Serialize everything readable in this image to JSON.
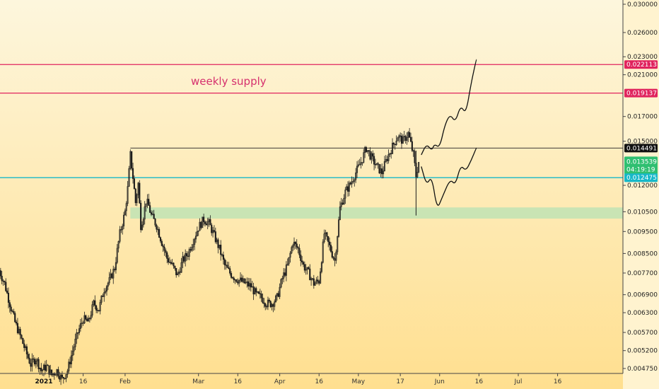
{
  "chart_data": {
    "type": "candlestick",
    "title": "",
    "ylim": [
      0.0047,
      0.0315
    ],
    "y_ticks": [
      0.03,
      0.026,
      0.023,
      0.021,
      0.017,
      0.015,
      0.012,
      0.0105,
      0.0095,
      0.0085,
      0.0077,
      0.0069,
      0.0063,
      0.0057,
      0.0052,
      0.00475
    ],
    "x_labels": [
      {
        "label": "2021",
        "day": 0,
        "bold": true
      },
      {
        "label": "16",
        "day": 15
      },
      {
        "label": "Feb",
        "day": 31
      },
      {
        "label": "Mar",
        "day": 59
      },
      {
        "label": "16",
        "day": 74
      },
      {
        "label": "Apr",
        "day": 90
      },
      {
        "label": "16",
        "day": 105
      },
      {
        "label": "May",
        "day": 120
      },
      {
        "label": "17",
        "day": 136
      },
      {
        "label": "Jun",
        "day": 151
      },
      {
        "label": "16",
        "day": 166
      },
      {
        "label": "Jul",
        "day": 181
      },
      {
        "label": "16",
        "day": 196
      }
    ],
    "price_path": [
      [
        -17,
        0.0078
      ],
      [
        -15,
        0.0073
      ],
      [
        -13,
        0.0066
      ],
      [
        -11,
        0.006
      ],
      [
        -9,
        0.0056
      ],
      [
        -7,
        0.0052
      ],
      [
        -5,
        0.00485
      ],
      [
        -3,
        0.005
      ],
      [
        -1,
        0.0047
      ],
      [
        1,
        0.0048
      ],
      [
        3,
        0.0046
      ],
      [
        5,
        0.0047
      ],
      [
        7,
        0.0045
      ],
      [
        9,
        0.0047
      ],
      [
        11,
        0.0052
      ],
      [
        13,
        0.0057
      ],
      [
        15,
        0.0061
      ],
      [
        17,
        0.006
      ],
      [
        19,
        0.0066
      ],
      [
        21,
        0.0064
      ],
      [
        23,
        0.0071
      ],
      [
        25,
        0.0074
      ],
      [
        27,
        0.0079
      ],
      [
        29,
        0.0094
      ],
      [
        31,
        0.0105
      ],
      [
        32,
        0.0118
      ],
      [
        33,
        0.014
      ],
      [
        34,
        0.0125
      ],
      [
        35,
        0.011
      ],
      [
        36,
        0.0121
      ],
      [
        37,
        0.0098
      ],
      [
        38,
        0.0103
      ],
      [
        39,
        0.0111
      ],
      [
        40,
        0.0108
      ],
      [
        41,
        0.0103
      ],
      [
        43,
        0.0098
      ],
      [
        45,
        0.009
      ],
      [
        47,
        0.0083
      ],
      [
        49,
        0.008
      ],
      [
        51,
        0.0076
      ],
      [
        53,
        0.0082
      ],
      [
        55,
        0.0085
      ],
      [
        57,
        0.0091
      ],
      [
        59,
        0.0097
      ],
      [
        61,
        0.0101
      ],
      [
        63,
        0.0099
      ],
      [
        65,
        0.0093
      ],
      [
        67,
        0.0087
      ],
      [
        69,
        0.008
      ],
      [
        71,
        0.0077
      ],
      [
        73,
        0.0075
      ],
      [
        75,
        0.0074
      ],
      [
        77,
        0.0073
      ],
      [
        79,
        0.0072
      ],
      [
        81,
        0.0069
      ],
      [
        83,
        0.0068
      ],
      [
        85,
        0.0066
      ],
      [
        87,
        0.0066
      ],
      [
        89,
        0.0068
      ],
      [
        91,
        0.0075
      ],
      [
        93,
        0.008
      ],
      [
        95,
        0.009
      ],
      [
        97,
        0.0087
      ],
      [
        99,
        0.008
      ],
      [
        101,
        0.0077
      ],
      [
        103,
        0.0073
      ],
      [
        105,
        0.0074
      ],
      [
        106,
        0.0083
      ],
      [
        107,
        0.0094
      ],
      [
        109,
        0.0088
      ],
      [
        111,
        0.0082
      ],
      [
        113,
        0.0107
      ],
      [
        115,
        0.0116
      ],
      [
        117,
        0.0121
      ],
      [
        119,
        0.0128
      ],
      [
        121,
        0.0135
      ],
      [
        123,
        0.0145
      ],
      [
        125,
        0.0138
      ],
      [
        127,
        0.0132
      ],
      [
        129,
        0.0128
      ],
      [
        131,
        0.0138
      ],
      [
        133,
        0.0146
      ],
      [
        135,
        0.0154
      ],
      [
        137,
        0.015
      ],
      [
        139,
        0.0156
      ],
      [
        140,
        0.0148
      ],
      [
        141,
        0.014
      ],
      [
        142,
        0.0126
      ],
      [
        143,
        0.0135
      ]
    ],
    "forecast_paths": [
      [
        [
          144,
          0.014
        ],
        [
          146,
          0.0148
        ],
        [
          148,
          0.0143
        ],
        [
          149,
          0.0148
        ],
        [
          151,
          0.0145
        ],
        [
          153,
          0.0163
        ],
        [
          155,
          0.0172
        ],
        [
          157,
          0.0165
        ],
        [
          159,
          0.018
        ],
        [
          161,
          0.0172
        ],
        [
          163,
          0.0201
        ],
        [
          165,
          0.0227
        ]
      ],
      [
        [
          144,
          0.0132
        ],
        [
          146,
          0.012
        ],
        [
          148,
          0.0126
        ],
        [
          150,
          0.0106
        ],
        [
          152,
          0.0113
        ],
        [
          155,
          0.0124
        ],
        [
          157,
          0.012
        ],
        [
          159,
          0.0133
        ],
        [
          161,
          0.0129
        ],
        [
          163,
          0.0136
        ],
        [
          165,
          0.0145
        ]
      ]
    ],
    "horizontal_lines": [
      {
        "value": 0.022113,
        "label": "0.022113",
        "color": "#e0245e"
      },
      {
        "value": 0.019137,
        "label": "0.019137",
        "color": "#e0245e"
      },
      {
        "value": 0.014491,
        "label": "0.014491",
        "color": "#222222"
      },
      {
        "value": 0.012475,
        "label": "0.012475",
        "color": "#17b8c9"
      }
    ],
    "current_price": {
      "value": 0.013539,
      "label": "0.013539",
      "countdown": "04:19:19",
      "color": "#2fbf71"
    },
    "zone": {
      "low": 0.01014,
      "high": 0.01073,
      "color": "#bfe3b4"
    },
    "annotation": {
      "text": "weekly supply",
      "color": "#d6306e"
    },
    "colors": {
      "background_top": "#fdf6dd",
      "background_bottom": "#ffdf8f",
      "candles": "#1c1c1c"
    }
  }
}
